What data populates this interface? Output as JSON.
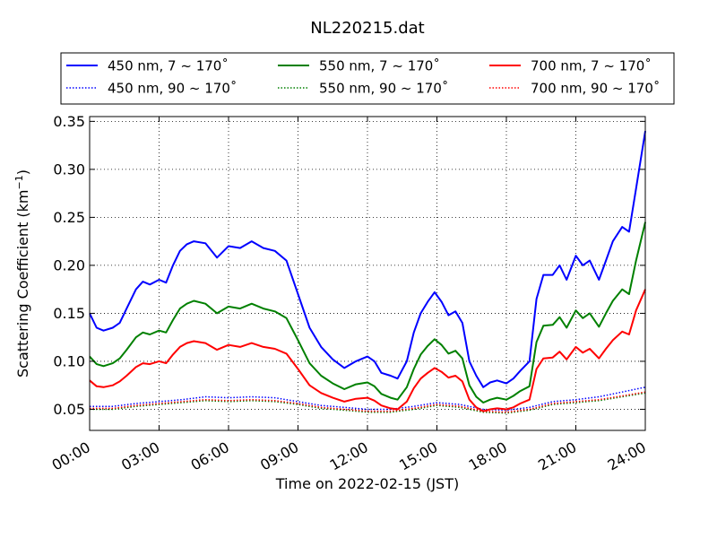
{
  "chart_data": {
    "type": "line",
    "title": "NL220215.dat",
    "xlabel": "Time on 2022-02-15 (JST)",
    "ylabel": "Scattering Coefficient (km",
    "ylabel_sup": "−1",
    "ylabel_close": ")",
    "xlim": [
      0,
      24
    ],
    "ylim": [
      0.028,
      0.355
    ],
    "x_ticks": [
      0,
      3,
      6,
      9,
      12,
      15,
      18,
      21,
      24
    ],
    "x_tick_labels": [
      "00:00",
      "03:00",
      "06:00",
      "09:00",
      "12:00",
      "15:00",
      "18:00",
      "21:00",
      "24:00"
    ],
    "y_ticks": [
      0.05,
      0.1,
      0.15,
      0.2,
      0.25,
      0.3,
      0.35
    ],
    "y_tick_labels": [
      "0.05",
      "0.10",
      "0.15",
      "0.20",
      "0.25",
      "0.30",
      "0.35"
    ],
    "grid": true,
    "legend_position": "top-center",
    "series": [
      {
        "name": "450 nm, 7 ~ 170˚",
        "color": "#0000ff",
        "style": "solid",
        "x": [
          0,
          0.3,
          0.6,
          1.0,
          1.3,
          1.6,
          2.0,
          2.3,
          2.6,
          3.0,
          3.3,
          3.6,
          3.9,
          4.2,
          4.5,
          5.0,
          5.5,
          6.0,
          6.5,
          7.0,
          7.5,
          8.0,
          8.5,
          9.0,
          9.5,
          10.0,
          10.5,
          11.0,
          11.5,
          12.0,
          12.3,
          12.6,
          13.0,
          13.3,
          13.7,
          14.0,
          14.3,
          14.6,
          14.9,
          15.2,
          15.5,
          15.8,
          16.1,
          16.4,
          16.7,
          17.0,
          17.3,
          17.6,
          18.0,
          18.3,
          18.6,
          19.0,
          19.3,
          19.6,
          20.0,
          20.3,
          20.6,
          21.0,
          21.3,
          21.6,
          22.0,
          22.3,
          22.6,
          23.0,
          23.3,
          23.6,
          24.0
        ],
        "y": [
          0.15,
          0.135,
          0.132,
          0.135,
          0.14,
          0.155,
          0.175,
          0.183,
          0.18,
          0.185,
          0.182,
          0.2,
          0.215,
          0.222,
          0.225,
          0.223,
          0.208,
          0.22,
          0.218,
          0.225,
          0.218,
          0.215,
          0.205,
          0.17,
          0.135,
          0.115,
          0.102,
          0.093,
          0.1,
          0.105,
          0.1,
          0.088,
          0.085,
          0.082,
          0.1,
          0.13,
          0.15,
          0.162,
          0.172,
          0.162,
          0.148,
          0.152,
          0.14,
          0.1,
          0.085,
          0.073,
          0.078,
          0.08,
          0.077,
          0.082,
          0.09,
          0.1,
          0.165,
          0.19,
          0.19,
          0.2,
          0.185,
          0.21,
          0.2,
          0.205,
          0.185,
          0.205,
          0.225,
          0.24,
          0.235,
          0.28,
          0.34
        ]
      },
      {
        "name": "450 nm, 90 ~ 170˚",
        "color": "#0000ff",
        "style": "dotted",
        "x": [
          0,
          1,
          2,
          3,
          4,
          5,
          6,
          7,
          8,
          9,
          10,
          11,
          12,
          13,
          14,
          15,
          16,
          17,
          18,
          19,
          20,
          21,
          22,
          23,
          24
        ],
        "y": [
          0.053,
          0.053,
          0.056,
          0.058,
          0.06,
          0.063,
          0.062,
          0.063,
          0.062,
          0.058,
          0.054,
          0.052,
          0.05,
          0.05,
          0.053,
          0.057,
          0.055,
          0.05,
          0.049,
          0.052,
          0.058,
          0.06,
          0.063,
          0.068,
          0.073
        ]
      },
      {
        "name": "550 nm, 7 ~ 170˚",
        "color": "#008000",
        "style": "solid",
        "x": [
          0,
          0.3,
          0.6,
          1.0,
          1.3,
          1.6,
          2.0,
          2.3,
          2.6,
          3.0,
          3.3,
          3.6,
          3.9,
          4.2,
          4.5,
          5.0,
          5.5,
          6.0,
          6.5,
          7.0,
          7.5,
          8.0,
          8.5,
          9.0,
          9.5,
          10.0,
          10.5,
          11.0,
          11.5,
          12.0,
          12.3,
          12.6,
          13.0,
          13.3,
          13.7,
          14.0,
          14.3,
          14.6,
          14.9,
          15.2,
          15.5,
          15.8,
          16.1,
          16.4,
          16.7,
          17.0,
          17.3,
          17.6,
          18.0,
          18.3,
          18.6,
          19.0,
          19.3,
          19.6,
          20.0,
          20.3,
          20.6,
          21.0,
          21.3,
          21.6,
          22.0,
          22.3,
          22.6,
          23.0,
          23.3,
          23.6,
          24.0
        ],
        "y": [
          0.105,
          0.097,
          0.095,
          0.098,
          0.103,
          0.112,
          0.125,
          0.13,
          0.128,
          0.132,
          0.13,
          0.143,
          0.155,
          0.16,
          0.163,
          0.16,
          0.15,
          0.157,
          0.155,
          0.16,
          0.155,
          0.152,
          0.145,
          0.122,
          0.098,
          0.085,
          0.077,
          0.071,
          0.076,
          0.078,
          0.074,
          0.066,
          0.062,
          0.06,
          0.073,
          0.092,
          0.107,
          0.116,
          0.123,
          0.117,
          0.108,
          0.111,
          0.103,
          0.075,
          0.063,
          0.057,
          0.06,
          0.062,
          0.06,
          0.064,
          0.069,
          0.074,
          0.12,
          0.137,
          0.138,
          0.146,
          0.135,
          0.153,
          0.145,
          0.15,
          0.136,
          0.15,
          0.163,
          0.175,
          0.17,
          0.205,
          0.245
        ]
      },
      {
        "name": "550 nm, 90 ~ 170˚",
        "color": "#008000",
        "style": "dotted",
        "x": [
          0,
          1,
          2,
          3,
          4,
          5,
          6,
          7,
          8,
          9,
          10,
          11,
          12,
          13,
          14,
          15,
          16,
          17,
          18,
          19,
          20,
          21,
          22,
          23,
          24
        ],
        "y": [
          0.05,
          0.05,
          0.053,
          0.055,
          0.057,
          0.059,
          0.058,
          0.059,
          0.058,
          0.055,
          0.051,
          0.049,
          0.047,
          0.047,
          0.05,
          0.054,
          0.052,
          0.047,
          0.046,
          0.049,
          0.055,
          0.057,
          0.059,
          0.063,
          0.067
        ]
      },
      {
        "name": "700 nm, 7 ~ 170˚",
        "color": "#ff0000",
        "style": "solid",
        "x": [
          0,
          0.3,
          0.6,
          1.0,
          1.3,
          1.6,
          2.0,
          2.3,
          2.6,
          3.0,
          3.3,
          3.6,
          3.9,
          4.2,
          4.5,
          5.0,
          5.5,
          6.0,
          6.5,
          7.0,
          7.5,
          8.0,
          8.5,
          9.0,
          9.5,
          10.0,
          10.5,
          11.0,
          11.5,
          12.0,
          12.3,
          12.6,
          13.0,
          13.3,
          13.7,
          14.0,
          14.3,
          14.6,
          14.9,
          15.2,
          15.5,
          15.8,
          16.1,
          16.4,
          16.7,
          17.0,
          17.3,
          17.6,
          18.0,
          18.3,
          18.6,
          19.0,
          19.3,
          19.6,
          20.0,
          20.3,
          20.6,
          21.0,
          21.3,
          21.6,
          22.0,
          22.3,
          22.6,
          23.0,
          23.3,
          23.6,
          24.0
        ],
        "y": [
          0.08,
          0.074,
          0.073,
          0.075,
          0.079,
          0.085,
          0.094,
          0.098,
          0.097,
          0.1,
          0.098,
          0.107,
          0.115,
          0.119,
          0.121,
          0.119,
          0.112,
          0.117,
          0.115,
          0.119,
          0.115,
          0.113,
          0.108,
          0.092,
          0.075,
          0.067,
          0.062,
          0.058,
          0.061,
          0.062,
          0.059,
          0.054,
          0.051,
          0.05,
          0.058,
          0.072,
          0.082,
          0.088,
          0.093,
          0.089,
          0.083,
          0.085,
          0.079,
          0.06,
          0.052,
          0.048,
          0.05,
          0.051,
          0.05,
          0.052,
          0.056,
          0.06,
          0.092,
          0.103,
          0.104,
          0.11,
          0.102,
          0.115,
          0.109,
          0.113,
          0.103,
          0.113,
          0.122,
          0.131,
          0.128,
          0.153,
          0.175
        ]
      },
      {
        "name": "700 nm, 90 ~ 170˚",
        "color": "#ff0000",
        "style": "dotted",
        "x": [
          0,
          1,
          2,
          3,
          4,
          5,
          6,
          7,
          8,
          9,
          10,
          11,
          12,
          13,
          14,
          15,
          16,
          17,
          18,
          19,
          20,
          21,
          22,
          23,
          24
        ],
        "y": [
          0.051,
          0.051,
          0.054,
          0.056,
          0.058,
          0.06,
          0.059,
          0.06,
          0.059,
          0.056,
          0.052,
          0.05,
          0.048,
          0.048,
          0.051,
          0.055,
          0.053,
          0.048,
          0.047,
          0.05,
          0.056,
          0.058,
          0.06,
          0.064,
          0.068
        ]
      }
    ]
  }
}
